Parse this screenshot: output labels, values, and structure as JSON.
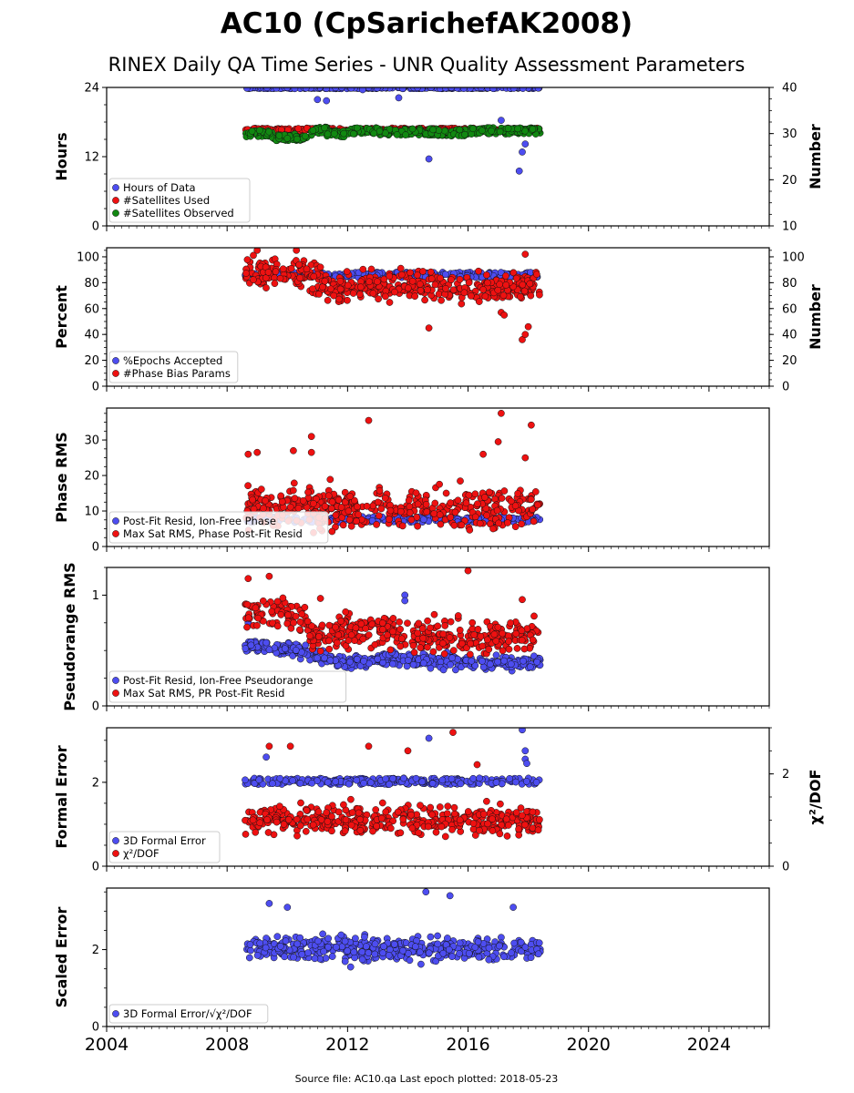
{
  "title": "AC10 (CpSarichefAK2008)",
  "subtitle": "RINEX Daily QA Time Series - UNR Quality Assessment Parameters",
  "footer": "Source file: AC10.qa Last epoch plotted: 2018-05-23",
  "colors": {
    "blue": "#4d4df0",
    "red": "#ee1111",
    "green": "#118811"
  },
  "chart_data": [
    {
      "type": "scatter",
      "ylabel": "Hours",
      "ylim": [
        0,
        24
      ],
      "yticks": [
        "0",
        "12",
        "24"
      ],
      "ylabel_right": "Number",
      "ylim_right": [
        10,
        40
      ],
      "yticks_right": [
        "10",
        "20",
        "30",
        "40"
      ],
      "legend": [
        "Hours of Data",
        "#Satellites Used",
        "#Satellites Observed"
      ],
      "series": [
        {
          "name": "Hours of Data",
          "color": "#4d4df0",
          "axis": "left",
          "mode": "band",
          "x": [
            2008.6,
            2018.4
          ],
          "band": [
            23.8,
            24.0
          ],
          "outliers": [
            [
              2011.0,
              21.9
            ],
            [
              2011.3,
              21.7
            ],
            [
              2012.5,
              23.6
            ],
            [
              2013.7,
              22.2
            ],
            [
              2014.7,
              11.6
            ],
            [
              2017.1,
              18.3
            ],
            [
              2017.7,
              9.5
            ],
            [
              2017.8,
              12.8
            ],
            [
              2017.9,
              14.2
            ]
          ]
        },
        {
          "name": "#Satellites Used",
          "color": "#ee1111",
          "axis": "right",
          "mode": "band",
          "x": [
            2008.6,
            2018.4
          ],
          "band": [
            30.5,
            31.2
          ],
          "outliers": [
            [
              2009.8,
              30.8
            ]
          ]
        },
        {
          "name": "#Satellites Observed",
          "color": "#118811",
          "axis": "right",
          "mode": "steps",
          "x": [
            2008.6,
            2018.4
          ],
          "levels": [
            [
              2008.6,
              30
            ],
            [
              2009.5,
              29.2
            ],
            [
              2010.8,
              30.7
            ],
            [
              2011.3,
              30
            ],
            [
              2012.0,
              30.6
            ],
            [
              2013.0,
              30.4
            ],
            [
              2015.0,
              30.2
            ],
            [
              2016.0,
              30.6
            ],
            [
              2018.4,
              30.6
            ]
          ],
          "spread": 0.7
        }
      ]
    },
    {
      "type": "scatter",
      "ylabel": "Percent",
      "ylim": [
        0,
        107
      ],
      "yticks": [
        "0",
        "20",
        "40",
        "60",
        "80",
        "100"
      ],
      "ylabel_right": "Number",
      "ylim_right": [
        0,
        107
      ],
      "yticks_right": [
        "0",
        "20",
        "40",
        "60",
        "80",
        "100"
      ],
      "legend": [
        "%Epochs Accepted",
        "#Phase Bias Params"
      ],
      "series": [
        {
          "name": "%Epochs Accepted",
          "color": "#4d4df0",
          "axis": "left",
          "mode": "band",
          "x": [
            2008.6,
            2018.4
          ],
          "band": [
            84,
            88
          ],
          "outliers": []
        },
        {
          "name": "#Phase Bias Params",
          "color": "#ee1111",
          "axis": "right",
          "mode": "noise",
          "x": [
            2008.6,
            2018.4
          ],
          "center": 80,
          "spread": 9,
          "trend": [
            [
              2008.6,
              88
            ],
            [
              2010.5,
              86
            ],
            [
              2011.5,
              76
            ],
            [
              2014.0,
              78
            ],
            [
              2016.0,
              76
            ],
            [
              2018.4,
              78
            ]
          ],
          "outliers": [
            [
              2009.0,
              105
            ],
            [
              2010.3,
              105
            ],
            [
              2014.7,
              45
            ],
            [
              2017.1,
              57
            ],
            [
              2017.2,
              55
            ],
            [
              2017.8,
              36
            ],
            [
              2017.9,
              40
            ],
            [
              2018.0,
              46
            ],
            [
              2017.9,
              102
            ]
          ]
        }
      ]
    },
    {
      "type": "scatter",
      "ylabel": "Phase RMS",
      "ylim": [
        0,
        39
      ],
      "yticks": [
        "0",
        "10",
        "20",
        "30"
      ],
      "legend": [
        "Post-Fit Resid, Ion-Free Phase",
        "Max Sat RMS, Phase Post-Fit Resid"
      ],
      "series": [
        {
          "name": "Post-Fit Resid, Ion-Free Phase",
          "color": "#4d4df0",
          "axis": "left",
          "mode": "band",
          "x": [
            2008.6,
            2018.4
          ],
          "band": [
            6.8,
            8.4
          ],
          "outliers": []
        },
        {
          "name": "Max Sat RMS, Phase Post-Fit Resid",
          "color": "#ee1111",
          "axis": "left",
          "mode": "noise",
          "x": [
            2008.6,
            2018.4
          ],
          "center": 12,
          "spread": 4.5,
          "trend": [
            [
              2008.6,
              11
            ],
            [
              2018.4,
              11
            ]
          ],
          "outliers": [
            [
              2008.7,
              26
            ],
            [
              2009.0,
              26.5
            ],
            [
              2010.2,
              27
            ],
            [
              2010.8,
              31
            ],
            [
              2010.8,
              26.5
            ],
            [
              2012.7,
              35.5
            ],
            [
              2017.1,
              37.5
            ],
            [
              2017.0,
              29.5
            ],
            [
              2017.9,
              25
            ],
            [
              2018.1,
              34.2
            ],
            [
              2016.5,
              26
            ]
          ]
        }
      ]
    },
    {
      "type": "scatter",
      "ylabel": "Pseudorange RMS",
      "ylim": [
        0,
        1.25
      ],
      "yticks": [
        "0",
        "1"
      ],
      "legend": [
        "Post-Fit Resid, Ion-Free Pseudorange",
        "Max Sat RMS, PR Post-Fit Resid"
      ],
      "series": [
        {
          "name": "Post-Fit Resid, Ion-Free Pseudorange",
          "color": "#4d4df0",
          "axis": "left",
          "mode": "noise",
          "x": [
            2008.6,
            2018.4
          ],
          "center": 0.45,
          "spread": 0.05,
          "trend": [
            [
              2008.6,
              0.55
            ],
            [
              2010.5,
              0.5
            ],
            [
              2011.5,
              0.4
            ],
            [
              2014.0,
              0.42
            ],
            [
              2016.5,
              0.38
            ],
            [
              2018.4,
              0.4
            ]
          ],
          "outliers": [
            [
              2008.7,
              0.75
            ],
            [
              2013.9,
              1.0
            ],
            [
              2013.9,
              0.95
            ]
          ]
        },
        {
          "name": "Max Sat RMS, PR Post-Fit Resid",
          "color": "#ee1111",
          "axis": "left",
          "mode": "noise",
          "x": [
            2008.6,
            2018.4
          ],
          "center": 0.7,
          "spread": 0.12,
          "trend": [
            [
              2008.6,
              0.85
            ],
            [
              2010.5,
              0.8
            ],
            [
              2011.0,
              0.6
            ],
            [
              2012.0,
              0.7
            ],
            [
              2016.0,
              0.6
            ],
            [
              2018.4,
              0.65
            ]
          ],
          "outliers": [
            [
              2008.7,
              1.15
            ],
            [
              2009.4,
              1.17
            ],
            [
              2016.0,
              1.22
            ],
            [
              2011.1,
              0.97
            ],
            [
              2017.8,
              0.96
            ]
          ]
        }
      ]
    },
    {
      "type": "scatter",
      "ylabel": "Formal Error",
      "ylim": [
        0,
        3.3
      ],
      "yticks": [
        "0",
        "2"
      ],
      "ylabel_right": "χ²/DOF",
      "ylim_right": [
        0,
        3.0
      ],
      "yticks_right": [
        "0",
        "2"
      ],
      "legend": [
        "3D Formal Error",
        "χ²/DOF"
      ],
      "series": [
        {
          "name": "3D Formal Error",
          "color": "#4d4df0",
          "axis": "left",
          "mode": "band",
          "x": [
            2008.6,
            2018.4
          ],
          "band": [
            1.95,
            2.1
          ],
          "outliers": [
            [
              2009.3,
              2.6
            ],
            [
              2014.7,
              3.05
            ],
            [
              2017.8,
              3.25
            ],
            [
              2017.9,
              2.75
            ],
            [
              2017.9,
              2.55
            ],
            [
              2017.95,
              2.45
            ]
          ]
        },
        {
          "name": "χ²/DOF",
          "color": "#ee1111",
          "axis": "right",
          "mode": "noise",
          "x": [
            2008.6,
            2018.4
          ],
          "center": 1.0,
          "spread": 0.25,
          "trend": [
            [
              2008.6,
              1.0
            ],
            [
              2018.4,
              1.0
            ]
          ],
          "outliers": [
            [
              2009.4,
              2.6
            ],
            [
              2010.1,
              2.6
            ],
            [
              2012.7,
              2.6
            ],
            [
              2014.0,
              2.5
            ],
            [
              2015.5,
              2.9
            ],
            [
              2016.3,
              2.2
            ]
          ]
        }
      ]
    },
    {
      "type": "scatter",
      "ylabel": "Scaled Error",
      "ylim": [
        0,
        3.6
      ],
      "yticks": [
        "0",
        "2"
      ],
      "legend": [
        "3D Formal Error/√χ²/DOF"
      ],
      "series": [
        {
          "name": "3D Formal Error/√χ²/DOF",
          "color": "#4d4df0",
          "axis": "left",
          "mode": "noise",
          "x": [
            2008.6,
            2018.4
          ],
          "center": 2.0,
          "spread": 0.25,
          "trend": [
            [
              2008.6,
              2.05
            ],
            [
              2018.4,
              2.0
            ]
          ],
          "outliers": [
            [
              2009.4,
              3.2
            ],
            [
              2010.0,
              3.1
            ],
            [
              2014.6,
              3.5
            ],
            [
              2015.4,
              3.4
            ],
            [
              2017.5,
              3.1
            ],
            [
              2012.1,
              1.55
            ]
          ]
        }
      ]
    }
  ],
  "xaxis": {
    "xlim": [
      2004,
      2026
    ],
    "ticks": [
      "2004",
      "2008",
      "2012",
      "2016",
      "2020",
      "2024"
    ]
  }
}
